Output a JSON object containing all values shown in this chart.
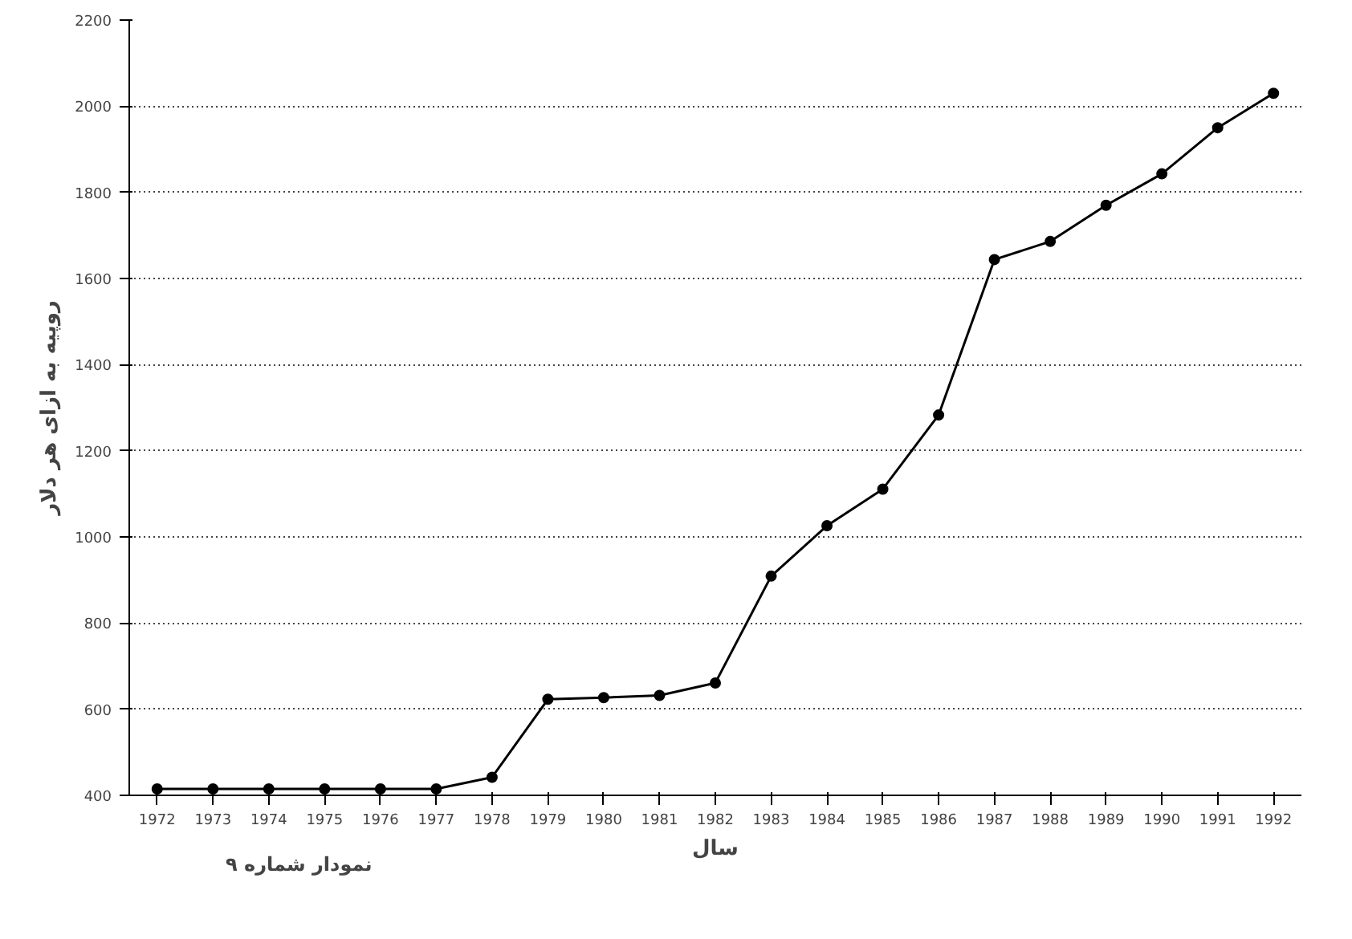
{
  "chart_data": {
    "type": "line",
    "xlabel": "سال",
    "ylabel": "روپیه به ازای هر دلار",
    "annotations": [
      "نمودار شماره ۹"
    ],
    "categories": [
      "1972",
      "1973",
      "1974",
      "1975",
      "1976",
      "1977",
      "1978",
      "1979",
      "1980",
      "1981",
      "1982",
      "1983",
      "1984",
      "1985",
      "1986",
      "1987",
      "1988",
      "1989",
      "1990",
      "1991",
      "1992"
    ],
    "series": [
      {
        "color": "#000000",
        "values": [
          415,
          415,
          415,
          415,
          415,
          415,
          442,
          623,
          627,
          632,
          661,
          909,
          1026,
          1111,
          1283,
          1644,
          1686,
          1770,
          1843,
          1950,
          2030
        ]
      }
    ],
    "ylim": [
      400,
      2200
    ],
    "yticks": [
      400,
      600,
      800,
      1000,
      1200,
      1400,
      1600,
      1800,
      2000,
      2200
    ],
    "grid": "y",
    "marker": "circle",
    "line_style": "solid"
  }
}
